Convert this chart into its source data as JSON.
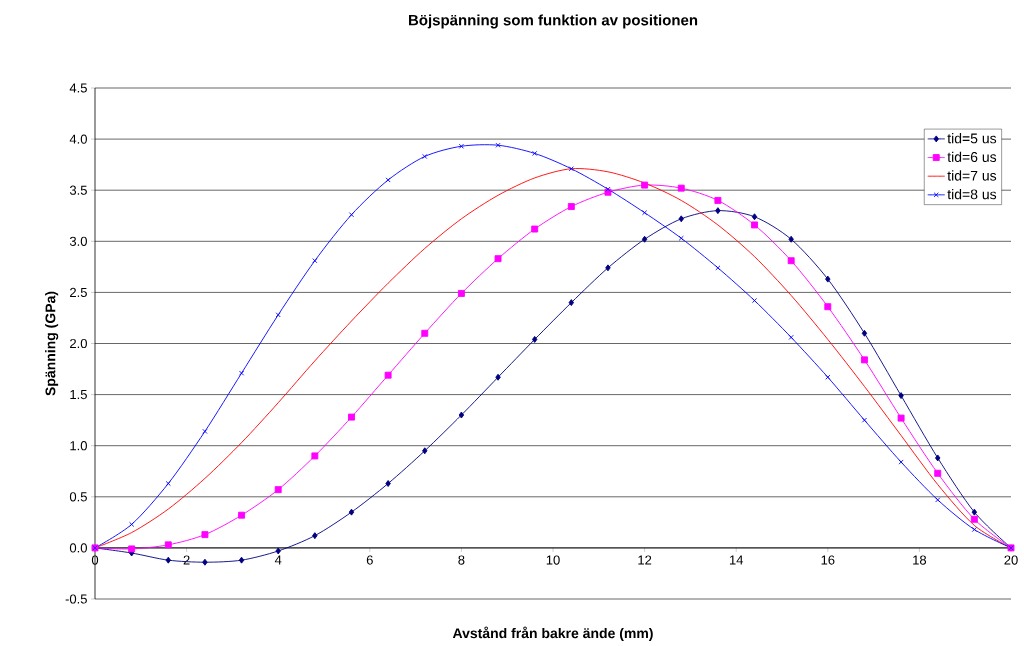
{
  "chart_data": {
    "type": "line",
    "title": "Böjspänning som funktion av positionen",
    "xlabel": "Avstånd från bakre ände (mm)",
    "ylabel": "Spänning (GPa)",
    "x": [
      0,
      0.8,
      1.6,
      2.4,
      3.2,
      4.0,
      4.8,
      5.6,
      6.4,
      7.2,
      8.0,
      8.8,
      9.6,
      10.4,
      11.2,
      12.0,
      12.8,
      13.6,
      14.4,
      15.2,
      16.0,
      16.8,
      17.6,
      18.4,
      19.2,
      20
    ],
    "series": [
      {
        "name": "tid=5 us",
        "color": "#000080",
        "marker": "diamond",
        "values": [
          0,
          -0.05,
          -0.12,
          -0.14,
          -0.12,
          -0.03,
          0.12,
          0.35,
          0.63,
          0.95,
          1.3,
          1.67,
          2.04,
          2.4,
          2.74,
          3.02,
          3.22,
          3.3,
          3.24,
          3.02,
          2.63,
          2.1,
          1.49,
          0.88,
          0.35,
          0
        ]
      },
      {
        "name": "tid=6 us",
        "color": "#ff00ff",
        "marker": "square",
        "values": [
          0,
          -0.01,
          0.03,
          0.13,
          0.32,
          0.57,
          0.9,
          1.28,
          1.69,
          2.1,
          2.49,
          2.83,
          3.12,
          3.34,
          3.48,
          3.55,
          3.52,
          3.4,
          3.16,
          2.81,
          2.36,
          1.84,
          1.27,
          0.73,
          0.28,
          0
        ]
      },
      {
        "name": "tid=7 us",
        "color": "#ff0000",
        "marker": "none",
        "values": [
          0,
          0.15,
          0.38,
          0.68,
          1.03,
          1.42,
          1.83,
          2.22,
          2.59,
          2.93,
          3.22,
          3.45,
          3.62,
          3.71,
          3.68,
          3.57,
          3.4,
          3.16,
          2.85,
          2.47,
          2.04,
          1.58,
          1.1,
          0.62,
          0.22,
          0
        ]
      },
      {
        "name": "tid=8 us",
        "color": "#0000ff",
        "marker": "cross",
        "values": [
          0,
          0.23,
          0.63,
          1.14,
          1.71,
          2.28,
          2.81,
          3.26,
          3.6,
          3.83,
          3.93,
          3.94,
          3.86,
          3.71,
          3.51,
          3.28,
          3.03,
          2.74,
          2.42,
          2.06,
          1.67,
          1.25,
          0.84,
          0.47,
          0.18,
          0
        ]
      }
    ],
    "xlim": [
      0,
      20
    ],
    "xticks": [
      0,
      2,
      4,
      6,
      8,
      10,
      12,
      14,
      16,
      18,
      20
    ],
    "ylim": [
      -0.5,
      4.5
    ],
    "yticks": [
      {
        "value": -0.5,
        "label": "-0.5"
      },
      {
        "value": 0,
        "label": "0.0"
      },
      {
        "value": 0.5,
        "label": "0.5"
      },
      {
        "value": 1,
        "label": "1.0"
      },
      {
        "value": 1.5,
        "label": "1.5"
      },
      {
        "value": 2,
        "label": "2.0"
      },
      {
        "value": 2.5,
        "label": "2.5"
      },
      {
        "value": 3,
        "label": "3.0"
      },
      {
        "value": 3.5,
        "label": "3.5"
      },
      {
        "value": 4,
        "label": "4.0"
      },
      {
        "value": 4.5,
        "label": "4.5"
      }
    ],
    "grid": "y",
    "legend": "top right",
    "line_style": "solid"
  }
}
